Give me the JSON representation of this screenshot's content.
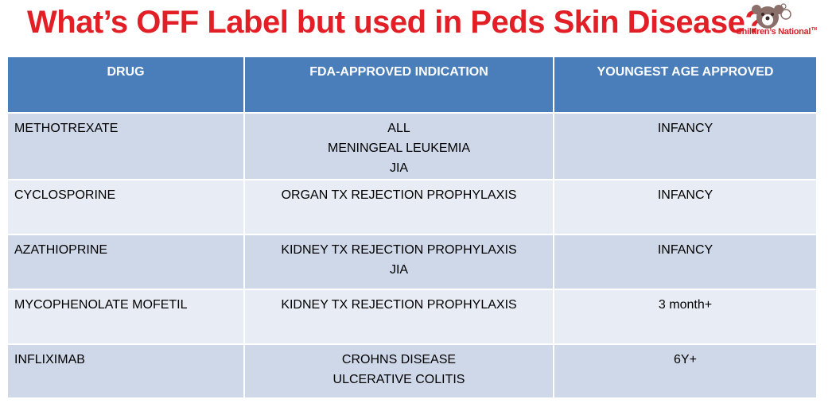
{
  "slide": {
    "title": "What’s OFF Label but used in Peds Skin Disease?",
    "logo_text": "Children’s National",
    "logo_tm": "TM"
  },
  "colors": {
    "title_red": "#e21f26",
    "header_blue": "#4a7ebb",
    "row_light": "#cfd8e9",
    "row_pale": "#e8ecf4",
    "logo_red": "#d91f26",
    "logo_bear": "#8a6f6a"
  },
  "table": {
    "headers": [
      "DRUG",
      "FDA-APPROVED INDICATION",
      "YOUNGEST AGE APPROVED"
    ],
    "rows": [
      {
        "drug": "METHOTREXATE",
        "indication": [
          "ALL",
          "MENINGEAL LEUKEMIA",
          "JIA"
        ],
        "age": "INFANCY"
      },
      {
        "drug": "CYCLOSPORINE",
        "indication": [
          "ORGAN TX REJECTION PROPHYLAXIS"
        ],
        "age": "INFANCY"
      },
      {
        "drug": "AZATHIOPRINE",
        "indication": [
          "KIDNEY TX REJECTION PROPHYLAXIS",
          "JIA"
        ],
        "age": "INFANCY"
      },
      {
        "drug": "MYCOPHENOLATE MOFETIL",
        "indication": [
          "KIDNEY TX REJECTION PROPHYLAXIS"
        ],
        "age": "3 month+"
      },
      {
        "drug": "INFLIXIMAB",
        "indication": [
          "CROHNS DISEASE",
          "ULCERATIVE COLITIS"
        ],
        "age": "6Y+"
      }
    ]
  }
}
